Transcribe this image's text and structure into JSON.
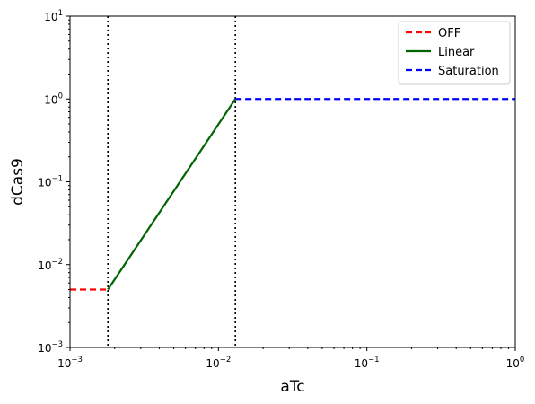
{
  "chart_data": {
    "type": "line",
    "xlabel": "aTc",
    "ylabel": "dCas9",
    "xscale": "log",
    "yscale": "log",
    "xlim": [
      0.001,
      1
    ],
    "ylim": [
      0.001,
      10
    ],
    "x_ticks": [
      {
        "value": 0.001,
        "base": "10",
        "exp": "−3"
      },
      {
        "value": 0.01,
        "base": "10",
        "exp": "−2"
      },
      {
        "value": 0.1,
        "base": "10",
        "exp": "−1"
      },
      {
        "value": 1,
        "base": "10",
        "exp": "0"
      }
    ],
    "y_ticks": [
      {
        "value": 0.001,
        "base": "10",
        "exp": "−3"
      },
      {
        "value": 0.01,
        "base": "10",
        "exp": "−2"
      },
      {
        "value": 0.1,
        "base": "10",
        "exp": "−1"
      },
      {
        "value": 1,
        "base": "10",
        "exp": "0"
      },
      {
        "value": 10,
        "base": "10",
        "exp": "1"
      }
    ],
    "grid": false,
    "legend_position": "top-right",
    "series": [
      {
        "name": "OFF",
        "color": "#ff0000",
        "style": "dashed",
        "x": [
          0.001,
          0.0018
        ],
        "y": [
          0.005,
          0.005
        ]
      },
      {
        "name": "Linear",
        "color": "#006400",
        "style": "solid",
        "x": [
          0.0018,
          0.013
        ],
        "y": [
          0.005,
          1
        ]
      },
      {
        "name": "Saturation",
        "color": "#0000ff",
        "style": "dashed",
        "x": [
          0.013,
          1
        ],
        "y": [
          1,
          1
        ]
      }
    ],
    "vlines": [
      {
        "x": 0.0018,
        "color": "#000000",
        "style": "dotted"
      },
      {
        "x": 0.013,
        "color": "#000000",
        "style": "dotted"
      }
    ]
  }
}
